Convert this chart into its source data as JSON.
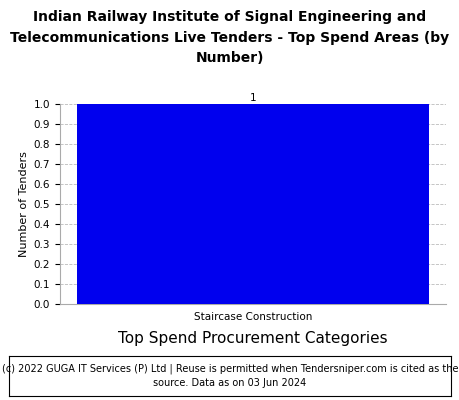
{
  "title_line1": "Indian Railway Institute of Signal Engineering and",
  "title_line2": "Telecommunications Live Tenders - Top Spend Areas (by",
  "title_line3": "Number)",
  "categories": [
    "Staircase Construction"
  ],
  "values": [
    1
  ],
  "bar_color": "#0000ee",
  "xlabel": "Top Spend Procurement Categories",
  "ylabel": "Number of Tenders",
  "ylim": [
    0,
    1.0
  ],
  "yticks": [
    0.0,
    0.1,
    0.2,
    0.3,
    0.4,
    0.5,
    0.6,
    0.7,
    0.8,
    0.9,
    1.0
  ],
  "bar_label_value": "1",
  "footnote_line1": "(c) 2022 GUGA IT Services (P) Ltd | Reuse is permitted when Tendersniper.com is cited as the",
  "footnote_line2": "source. Data as on 03 Jun 2024",
  "title_fontsize": 10,
  "xlabel_fontsize": 11,
  "ylabel_fontsize": 8,
  "tick_fontsize": 7.5,
  "footnote_fontsize": 7,
  "grid_color": "#bbbbbb",
  "background_color": "#ffffff",
  "plot_bg_color": "#ffffff",
  "spine_color": "#aaaaaa"
}
